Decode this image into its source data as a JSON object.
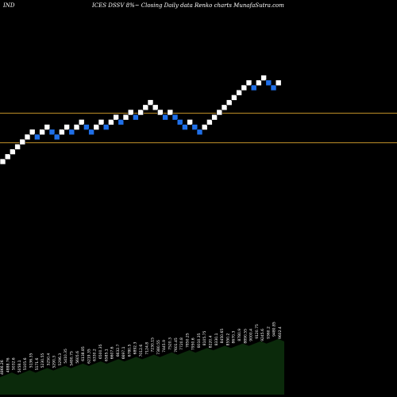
{
  "header": {
    "left": "IND",
    "title": "ICES DSSV 8%~ Closing Daily data Renko charts MunafaSutra.com"
  },
  "colors": {
    "background": "#000000",
    "up_brick": "#ffffff",
    "down_brick": "#1f6fe8",
    "ref_line": "#c8962a",
    "volume_fill": "#0b2a0b",
    "label_text": "#ffffff"
  },
  "chart_data": {
    "type": "renko",
    "reference_lines": [
      7,
      1
    ],
    "bricks": [
      {
        "dir": "up",
        "level": 0
      },
      {
        "dir": "up",
        "level": 1
      },
      {
        "dir": "up",
        "level": 2
      },
      {
        "dir": "up",
        "level": 3
      },
      {
        "dir": "up",
        "level": 4
      },
      {
        "dir": "up",
        "level": 5
      },
      {
        "dir": "up",
        "level": 6
      },
      {
        "dir": "down",
        "level": 5
      },
      {
        "dir": "up",
        "level": 6
      },
      {
        "dir": "up",
        "level": 7
      },
      {
        "dir": "down",
        "level": 6
      },
      {
        "dir": "down",
        "level": 5
      },
      {
        "dir": "up",
        "level": 6
      },
      {
        "dir": "up",
        "level": 7
      },
      {
        "dir": "down",
        "level": 6
      },
      {
        "dir": "up",
        "level": 7
      },
      {
        "dir": "up",
        "level": 8
      },
      {
        "dir": "down",
        "level": 7
      },
      {
        "dir": "down",
        "level": 6
      },
      {
        "dir": "up",
        "level": 7
      },
      {
        "dir": "up",
        "level": 8
      },
      {
        "dir": "down",
        "level": 7
      },
      {
        "dir": "up",
        "level": 8
      },
      {
        "dir": "up",
        "level": 9
      },
      {
        "dir": "down",
        "level": 8
      },
      {
        "dir": "up",
        "level": 9
      },
      {
        "dir": "up",
        "level": 10
      },
      {
        "dir": "down",
        "level": 9
      },
      {
        "dir": "up",
        "level": 10
      },
      {
        "dir": "up",
        "level": 11
      },
      {
        "dir": "up",
        "level": 12
      },
      {
        "dir": "up",
        "level": 11
      },
      {
        "dir": "up",
        "level": 10
      },
      {
        "dir": "down",
        "level": 9
      },
      {
        "dir": "up",
        "level": 10
      },
      {
        "dir": "down",
        "level": 9
      },
      {
        "dir": "down",
        "level": 8
      },
      {
        "dir": "down",
        "level": 7
      },
      {
        "dir": "up",
        "level": 8
      },
      {
        "dir": "down",
        "level": 7
      },
      {
        "dir": "down",
        "level": 6
      },
      {
        "dir": "up",
        "level": 7
      },
      {
        "dir": "up",
        "level": 8
      },
      {
        "dir": "up",
        "level": 9
      },
      {
        "dir": "up",
        "level": 10
      },
      {
        "dir": "up",
        "level": 11
      },
      {
        "dir": "up",
        "level": 12
      },
      {
        "dir": "up",
        "level": 13
      },
      {
        "dir": "up",
        "level": 14
      },
      {
        "dir": "up",
        "level": 15
      },
      {
        "dir": "up",
        "level": 16
      },
      {
        "dir": "down",
        "level": 15
      },
      {
        "dir": "up",
        "level": 16
      },
      {
        "dir": "up",
        "level": 17
      },
      {
        "dir": "down",
        "level": 16
      },
      {
        "dir": "down",
        "level": 15
      },
      {
        "dir": "up",
        "level": 16
      }
    ],
    "volume_labels": [
      "4866.26",
      "4888.76",
      "5032.6",
      "5058.1",
      "5105.6",
      "5136.35",
      "5171.6",
      "5230.55",
      "5250.4",
      "5290.3",
      "5296.3",
      "5410.35",
      "5490.75",
      "5605.6",
      "6138.85",
      "6219.35",
      "6330.2",
      "6500.35",
      "6585.1",
      "6607.6",
      "6632.7",
      "6697.1",
      "6780.5",
      "6892.3",
      "7012.6",
      "7124.8",
      "7230.15",
      "7380.55",
      "7445.9",
      "7520.3",
      "7601.45",
      "7720.8",
      "7850.25",
      "7950.6",
      "8010.35",
      "8105.75",
      "8220.4",
      "8330.1",
      "8450.65",
      "8550.2",
      "8670.3",
      "8780.9",
      "8890.55",
      "9000.4",
      "9120.75",
      "9245.6",
      "9360.2",
      "9480.85",
      "9602.4"
    ]
  }
}
